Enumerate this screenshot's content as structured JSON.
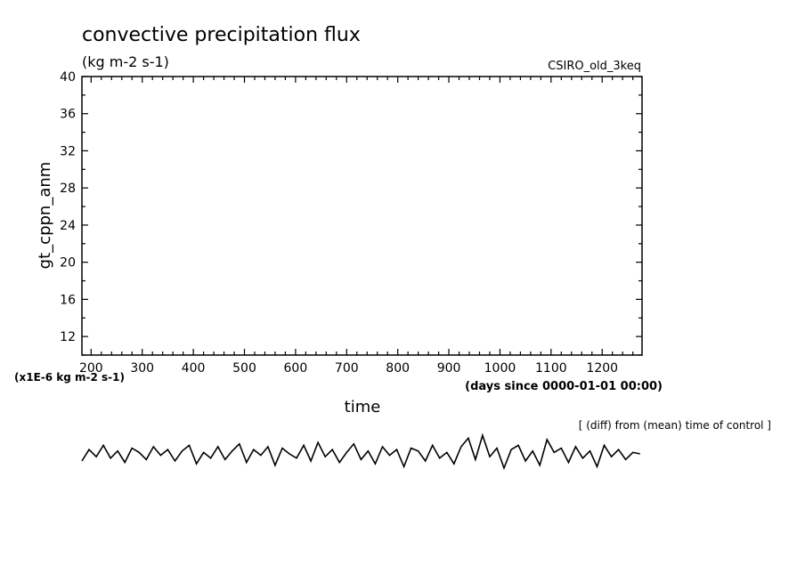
{
  "chart_data": {
    "type": "line",
    "title": "convective precipitation flux",
    "units": "(kg m-2 s-1)",
    "model_label": "CSIRO_old_3keq",
    "ylabel": "gt_cppn_anm",
    "xlabel": "time",
    "x_units": "(days since 0000-01-01 00:00)",
    "y_scale_note": "(x1E-6 kg m-2 s-1)",
    "diff_note": "[ (diff) from (mean) time of control ]",
    "xlim": [
      182,
      1278
    ],
    "ylim": [
      10,
      40
    ],
    "x_ticks": [
      200,
      300,
      400,
      500,
      600,
      700,
      800,
      900,
      1000,
      1100,
      1200
    ],
    "y_ticks": [
      12,
      16,
      20,
      24,
      28,
      32,
      36,
      40
    ],
    "colors": {
      "line": "#000000",
      "axes": "#000000",
      "background": "#ffffff"
    },
    "series": [
      {
        "values_note": "approximate trace drawn below the lower x-axis (below plotted y-range)",
        "x": [
          182,
          196,
          210,
          224,
          238,
          252,
          266,
          280,
          294,
          308,
          322,
          336,
          350,
          364,
          378,
          392,
          406,
          420,
          434,
          448,
          462,
          476,
          490,
          504,
          518,
          532,
          546,
          560,
          574,
          588,
          602,
          616,
          630,
          644,
          658,
          672,
          686,
          700,
          714,
          728,
          742,
          756,
          770,
          784,
          798,
          812,
          826,
          840,
          854,
          868,
          882,
          896,
          910,
          924,
          938,
          952,
          966,
          980,
          994,
          1008,
          1022,
          1036,
          1050,
          1064,
          1078,
          1092,
          1106,
          1120,
          1134,
          1148,
          1162,
          1176,
          1190,
          1204,
          1218,
          1232,
          1246,
          1260,
          1274
        ],
        "y": [
          -0.5,
          0.3,
          -0.2,
          0.6,
          -0.3,
          0.2,
          -0.6,
          0.4,
          0.1,
          -0.4,
          0.5,
          -0.1,
          0.3,
          -0.5,
          0.2,
          0.6,
          -0.7,
          0.1,
          -0.3,
          0.5,
          -0.4,
          0.2,
          0.7,
          -0.6,
          0.3,
          -0.1,
          0.5,
          -0.8,
          0.4,
          0.0,
          -0.3,
          0.6,
          -0.5,
          0.8,
          -0.2,
          0.3,
          -0.6,
          0.1,
          0.7,
          -0.4,
          0.2,
          -0.7,
          0.5,
          -0.1,
          0.3,
          -0.9,
          0.4,
          0.2,
          -0.5,
          0.6,
          -0.3,
          0.1,
          -0.7,
          0.5,
          1.1,
          -0.4,
          1.3,
          -0.2,
          0.4,
          -1.0,
          0.3,
          0.6,
          -0.5,
          0.2,
          -0.8,
          1.0,
          0.1,
          0.4,
          -0.6,
          0.5,
          -0.3,
          0.2,
          -0.9,
          0.6,
          -0.2,
          0.3,
          -0.4,
          0.1,
          0.0
        ]
      }
    ]
  }
}
